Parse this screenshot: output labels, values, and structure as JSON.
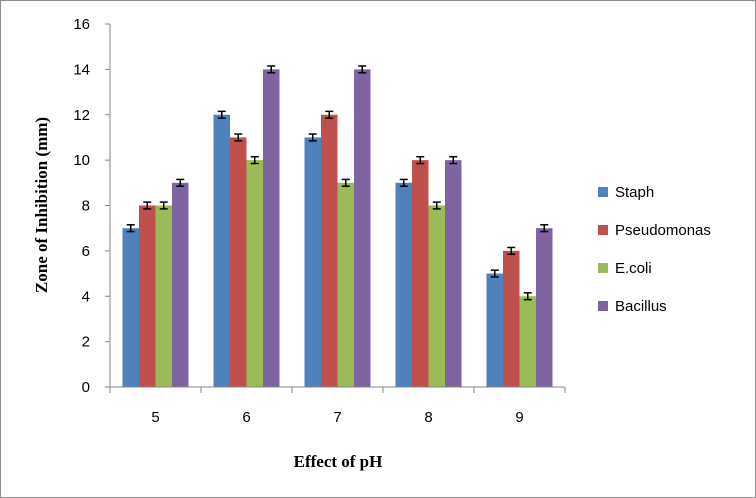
{
  "chart_data": {
    "type": "bar",
    "title": "",
    "xlabel": "Effect of pH",
    "ylabel": "Zone of Inhibition (mm)",
    "categories": [
      "5",
      "6",
      "7",
      "8",
      "9"
    ],
    "ylim": [
      0,
      16
    ],
    "yticks": [
      0,
      2,
      4,
      6,
      8,
      10,
      12,
      14,
      16
    ],
    "grid": false,
    "legend_position": "right",
    "error_bars": 0.15,
    "series": [
      {
        "name": "Staph",
        "color": "#4f81bd",
        "values": [
          7,
          12,
          11,
          9,
          5
        ]
      },
      {
        "name": "Pseudomonas",
        "color": "#c0504d",
        "values": [
          8,
          11,
          12,
          10,
          6
        ]
      },
      {
        "name": "E.coli",
        "color": "#9bbb59",
        "values": [
          8,
          10,
          9,
          8,
          4
        ]
      },
      {
        "name": "Bacillus",
        "color": "#8064a2",
        "values": [
          9,
          14,
          14,
          10,
          7
        ]
      }
    ]
  }
}
